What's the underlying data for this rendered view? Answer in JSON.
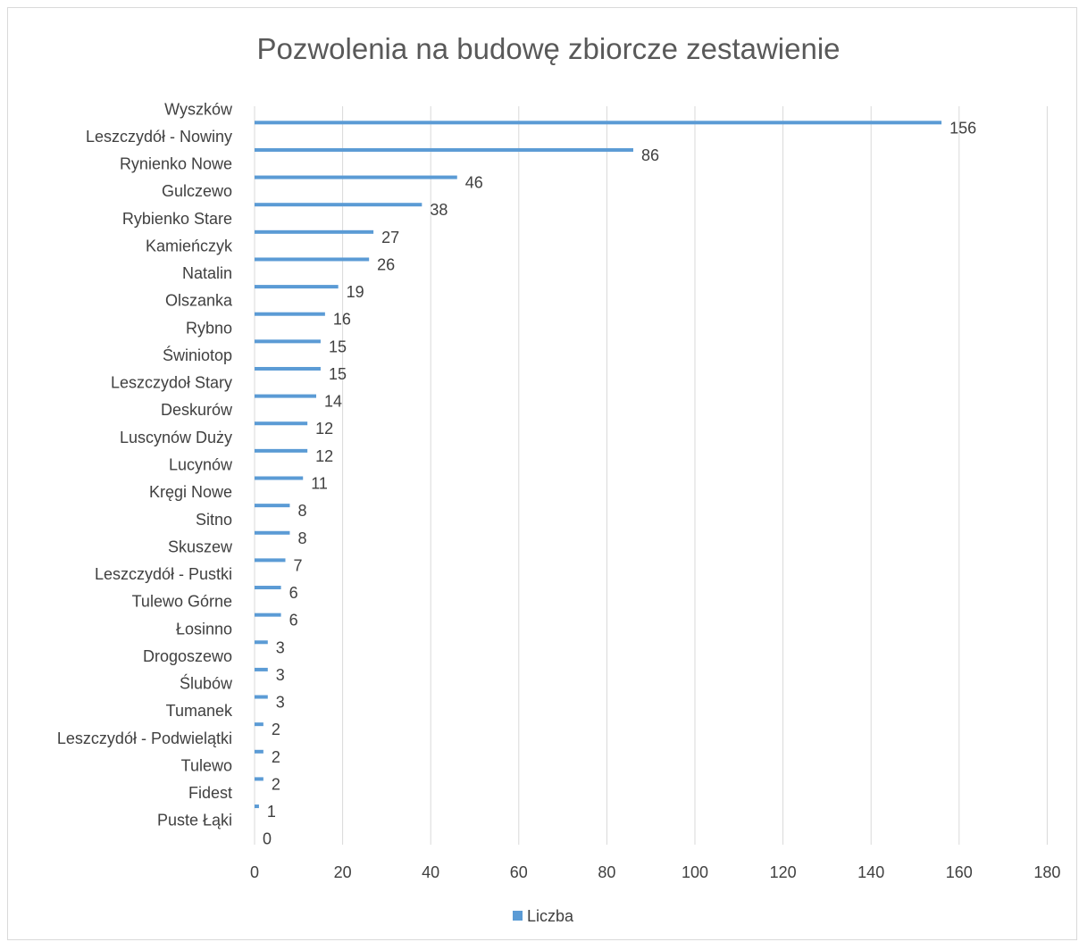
{
  "chart_data": {
    "type": "bar",
    "orientation": "horizontal",
    "title": "Pozwolenia na budowę zbiorcze zestawienie",
    "categories": [
      "Wyszków",
      "Leszczydół - Nowiny",
      "Rynienko Nowe",
      "Gulczewo",
      "Rybienko Stare",
      "Kamieńczyk",
      "Natalin",
      "Olszanka",
      "Rybno",
      "Świniotop",
      "Leszczydoł Stary",
      "Deskurów",
      "Luscynów Duży",
      "Lucynów",
      "Kręgi Nowe",
      "Sitno",
      "Skuszew",
      "Leszczydół - Pustki",
      "Tulewo Górne",
      "Łosinno",
      "Drogoszewo",
      "Ślubów",
      "Tumanek",
      "Leszczydół - Podwielątki",
      "Tulewo",
      "Fidest",
      "Puste Łąki"
    ],
    "series": [
      {
        "name": "Liczba",
        "color": "#5b9bd5",
        "values": [
          156,
          86,
          46,
          38,
          27,
          26,
          19,
          16,
          15,
          15,
          14,
          12,
          12,
          11,
          8,
          8,
          7,
          6,
          6,
          3,
          3,
          3,
          2,
          2,
          2,
          1,
          0
        ]
      }
    ],
    "xlim": [
      0,
      180
    ],
    "xticks": [
      "0",
      "20",
      "40",
      "60",
      "80",
      "100",
      "120",
      "140",
      "160",
      "180"
    ],
    "grid": true,
    "legend_position": "bottom",
    "data_labels": true
  }
}
